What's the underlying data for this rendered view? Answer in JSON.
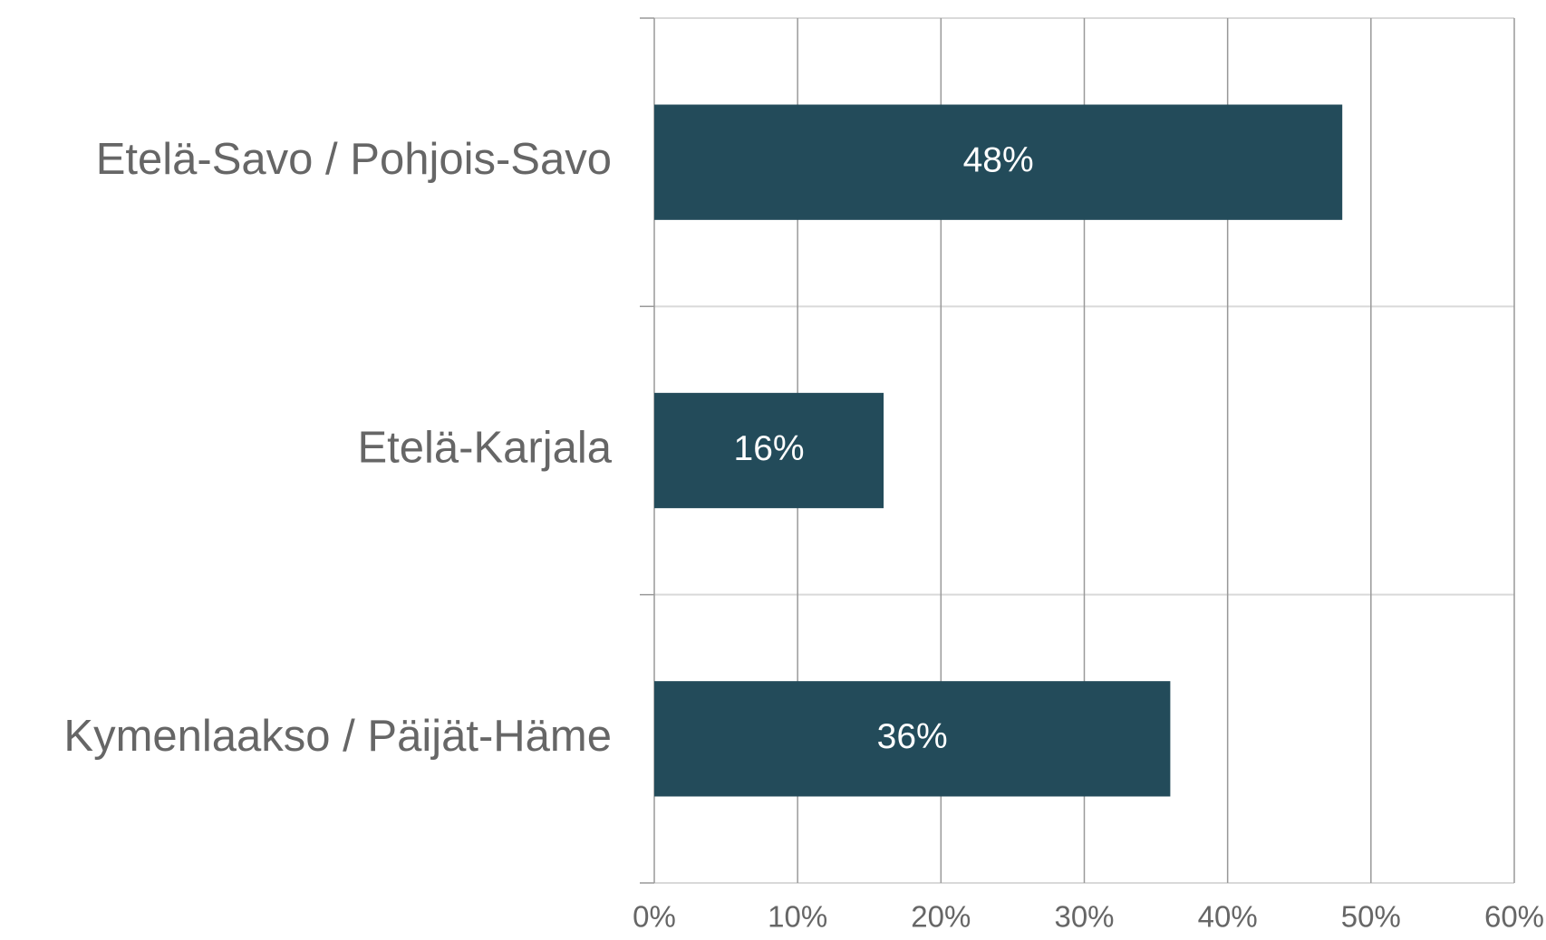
{
  "chart_data": {
    "type": "bar",
    "orientation": "horizontal",
    "categories": [
      "Etelä-Savo / Pohjois-Savo",
      "Etelä-Karjala",
      "Kymenlaakso / Päijät-Häme"
    ],
    "values": [
      48,
      16,
      36
    ],
    "value_labels": [
      "48%",
      "16%",
      "36%"
    ],
    "color": "#234b5a",
    "xlim": [
      0,
      60
    ],
    "xticks": [
      {
        "value": 0,
        "label": "0%"
      },
      {
        "value": 10,
        "label": "10%"
      },
      {
        "value": 20,
        "label": "20%"
      },
      {
        "value": 30,
        "label": "30%"
      },
      {
        "value": 40,
        "label": "40%"
      },
      {
        "value": 50,
        "label": "50%"
      },
      {
        "value": 60,
        "label": "60%"
      }
    ],
    "grid": true
  }
}
